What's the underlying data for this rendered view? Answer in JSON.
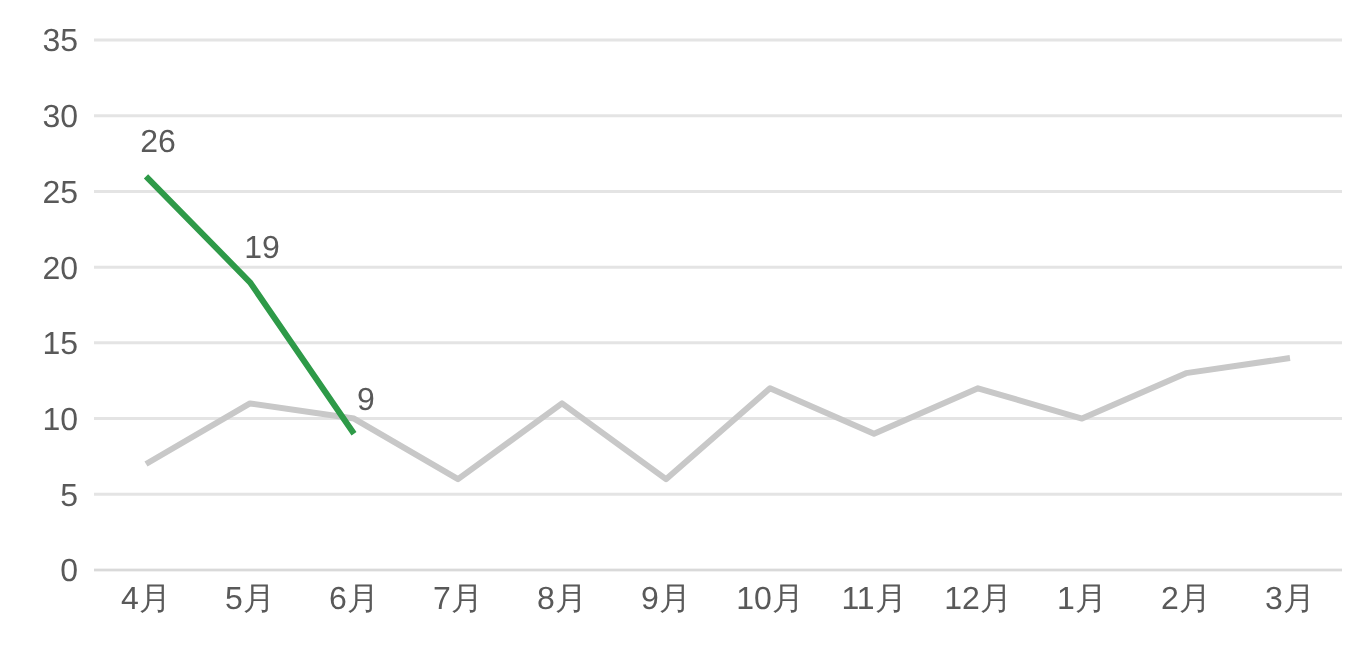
{
  "chart_data": {
    "type": "line",
    "categories": [
      "4月",
      "5月",
      "6月",
      "7月",
      "8月",
      "9月",
      "10月",
      "11月",
      "12月",
      "1月",
      "2月",
      "3月"
    ],
    "series": [
      {
        "color": "#c8c8c8",
        "values": [
          7,
          11,
          10,
          6,
          11,
          6,
          12,
          9,
          12,
          10,
          13,
          14
        ]
      },
      {
        "color": "#2e9a48",
        "values": [
          26,
          19,
          9,
          null,
          null,
          null,
          null,
          null,
          null,
          null,
          null,
          null
        ],
        "value_labels": [
          "26",
          "19",
          "9",
          null,
          null,
          null,
          null,
          null,
          null,
          null,
          null,
          null
        ]
      }
    ],
    "ylim": [
      0,
      35
    ],
    "yticks": [
      0,
      5,
      10,
      15,
      20,
      25,
      30,
      35
    ],
    "grid": "y",
    "marker": "none",
    "line_style": "solid"
  }
}
